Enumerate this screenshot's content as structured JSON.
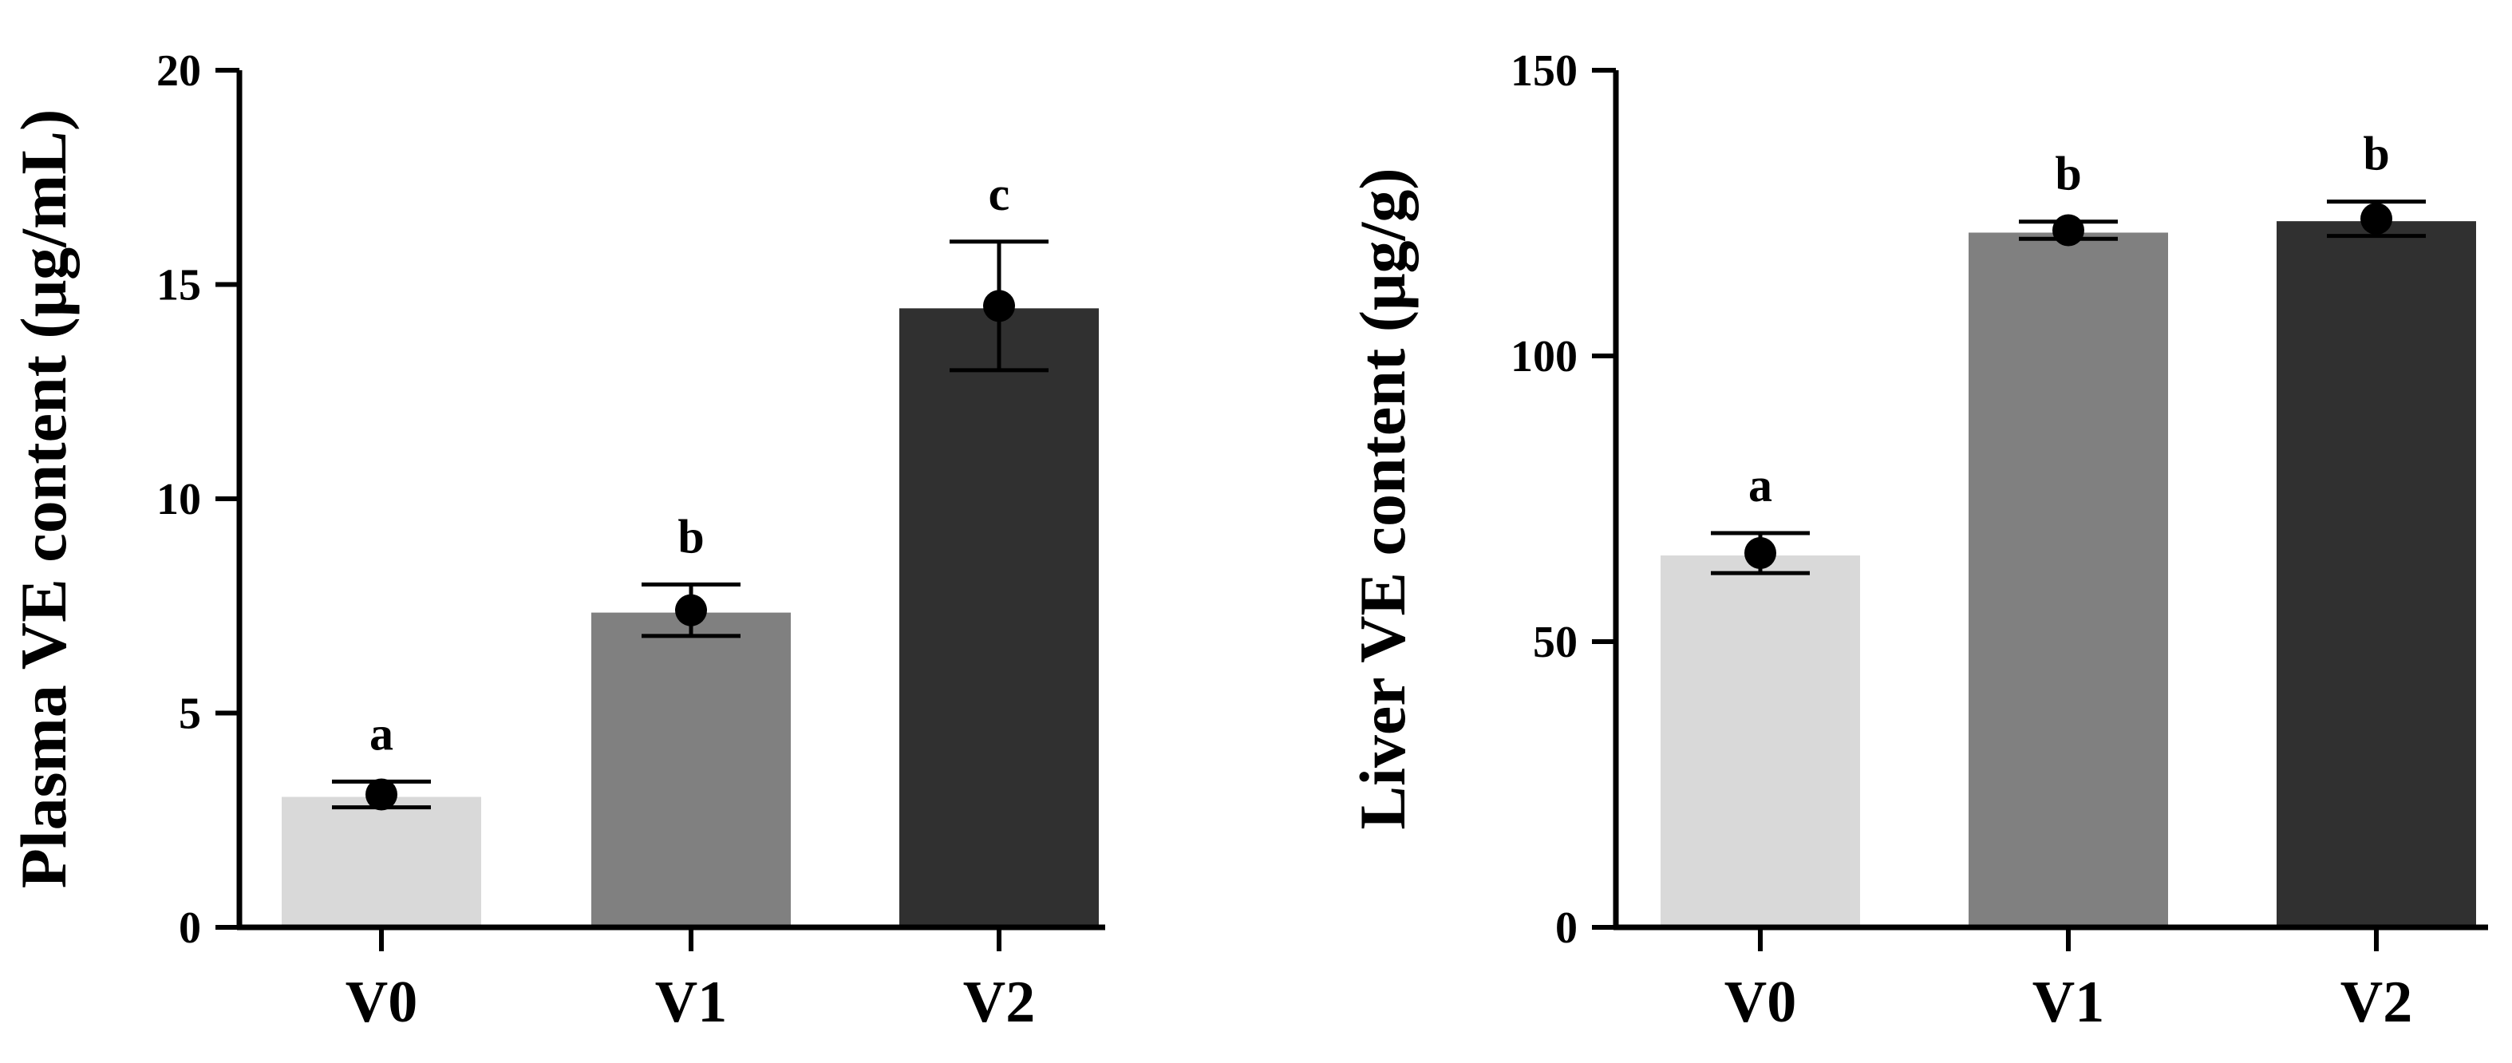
{
  "chart_data": [
    {
      "type": "bar",
      "title": "",
      "xlabel": "",
      "ylabel": "Plasma VE content (μg/mL)",
      "ylim": [
        0,
        20
      ],
      "yticks": [
        0,
        5,
        10,
        15,
        20
      ],
      "categories": [
        "V0",
        "V1",
        "V2"
      ],
      "values": [
        3.1,
        7.4,
        14.5
      ],
      "error": [
        0.3,
        0.6,
        1.5
      ],
      "points": [
        3.1,
        7.4,
        14.5
      ],
      "significance": [
        "a",
        "b",
        "c"
      ],
      "colors": [
        "#d9d9d9",
        "#808080",
        "#303030"
      ]
    },
    {
      "type": "bar",
      "title": "",
      "xlabel": "",
      "ylabel": "Liver VE content (μg/g)",
      "ylim": [
        0,
        150
      ],
      "yticks": [
        0,
        50,
        100,
        150
      ],
      "categories": [
        "V0",
        "V1",
        "V2"
      ],
      "values": [
        65.5,
        122,
        124
      ],
      "error": [
        3.5,
        1.5,
        3
      ],
      "points": [
        65.5,
        122,
        124
      ],
      "significance": [
        "a",
        "b",
        "b"
      ],
      "colors": [
        "#d9d9d9",
        "#808080",
        "#303030"
      ]
    }
  ]
}
